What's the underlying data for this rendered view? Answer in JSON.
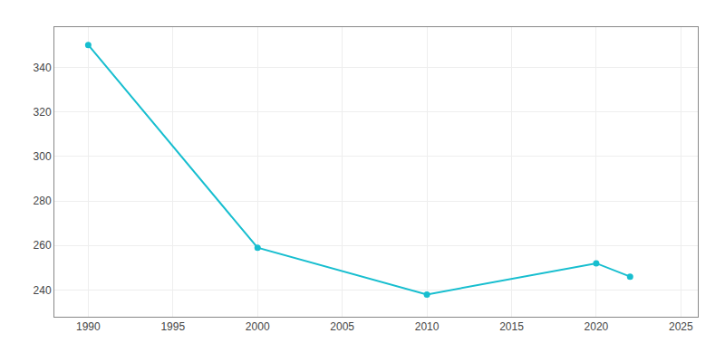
{
  "chart_data": {
    "type": "line",
    "x": [
      1990,
      2000,
      2010,
      2020,
      2022
    ],
    "values": [
      350,
      259,
      238,
      252,
      246
    ],
    "color": "#17becf",
    "marker": "circle",
    "xlim": [
      1988,
      2026
    ],
    "xticks": [
      1990,
      1995,
      2000,
      2005,
      2010,
      2015,
      2020,
      2025
    ],
    "ylim": [
      228,
      358
    ],
    "yticks": [
      240,
      260,
      280,
      300,
      320,
      340
    ],
    "grid": true
  }
}
